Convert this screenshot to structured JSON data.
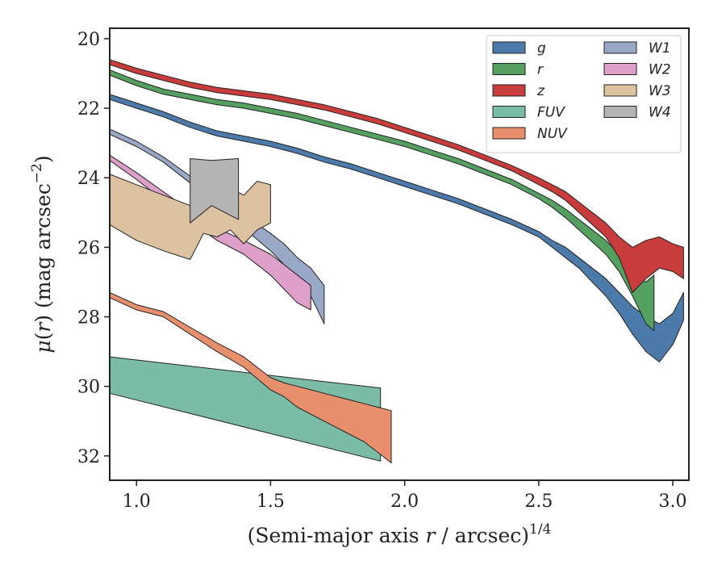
{
  "chart_data": {
    "type": "area",
    "xlabel": "(Semi-major axis r / arcsec)1/4",
    "ylabel": "μ(r) (mag arcsec−2)",
    "xlim": [
      0.9,
      3.06
    ],
    "ylim": [
      32.7,
      19.7
    ],
    "y_inverted": true,
    "xticks": [
      "1.0",
      "1.5",
      "2.0",
      "2.5",
      "3.0"
    ],
    "xtick_values": [
      1.0,
      1.5,
      2.0,
      2.5,
      3.0
    ],
    "yticks": [
      "20",
      "22",
      "24",
      "26",
      "28",
      "30",
      "32"
    ],
    "ytick_values": [
      20,
      22,
      24,
      26,
      28,
      30,
      32
    ],
    "legend_placement": "top-right",
    "legend_columns": 2,
    "grid": false,
    "series": [
      {
        "name": "g",
        "color": "#4c7aaa",
        "x": [
          0.9,
          1.0,
          1.1,
          1.2,
          1.3,
          1.4,
          1.5,
          1.6,
          1.7,
          1.8,
          1.9,
          2.0,
          2.1,
          2.2,
          2.3,
          2.4,
          2.5,
          2.55,
          2.6,
          2.65,
          2.7,
          2.75,
          2.8,
          2.85,
          2.9,
          2.95,
          3.0,
          3.04
        ],
        "lower": [
          21.6,
          21.85,
          22.1,
          22.4,
          22.65,
          22.8,
          22.95,
          23.15,
          23.4,
          23.6,
          23.85,
          24.1,
          24.35,
          24.6,
          24.9,
          25.2,
          25.55,
          25.8,
          26.0,
          26.3,
          26.6,
          26.9,
          27.3,
          27.7,
          28.0,
          28.2,
          27.9,
          27.3
        ],
        "upper": [
          21.75,
          22.0,
          22.25,
          22.55,
          22.8,
          22.95,
          23.1,
          23.3,
          23.55,
          23.75,
          24.0,
          24.25,
          24.5,
          24.75,
          25.05,
          25.35,
          25.7,
          26.0,
          26.3,
          26.6,
          27.0,
          27.4,
          27.9,
          28.5,
          29.0,
          29.3,
          28.8,
          28.1
        ]
      },
      {
        "name": "r",
        "color": "#55a060",
        "x": [
          0.9,
          1.0,
          1.1,
          1.2,
          1.3,
          1.4,
          1.5,
          1.6,
          1.7,
          1.8,
          1.9,
          2.0,
          2.1,
          2.2,
          2.3,
          2.4,
          2.5,
          2.55,
          2.6,
          2.65,
          2.7,
          2.75,
          2.8,
          2.85,
          2.9,
          2.93
        ],
        "lower": [
          20.9,
          21.2,
          21.45,
          21.6,
          21.75,
          21.85,
          22.0,
          22.15,
          22.35,
          22.55,
          22.75,
          22.95,
          23.2,
          23.45,
          23.75,
          24.05,
          24.45,
          24.65,
          24.9,
          25.2,
          25.5,
          25.8,
          26.2,
          26.7,
          27.0,
          26.8
        ],
        "upper": [
          21.05,
          21.35,
          21.6,
          21.75,
          21.9,
          22.0,
          22.15,
          22.3,
          22.5,
          22.7,
          22.9,
          23.1,
          23.35,
          23.6,
          23.9,
          24.2,
          24.6,
          24.85,
          25.15,
          25.5,
          25.85,
          26.2,
          26.7,
          27.4,
          28.2,
          28.4
        ]
      },
      {
        "name": "z",
        "color": "#c83c3c",
        "x": [
          0.9,
          1.0,
          1.1,
          1.2,
          1.3,
          1.4,
          1.5,
          1.6,
          1.7,
          1.8,
          1.9,
          2.0,
          2.1,
          2.2,
          2.3,
          2.4,
          2.5,
          2.55,
          2.6,
          2.65,
          2.7,
          2.75,
          2.8,
          2.85,
          2.9,
          2.95,
          3.0,
          3.04
        ],
        "lower": [
          20.6,
          20.85,
          21.05,
          21.25,
          21.4,
          21.5,
          21.6,
          21.75,
          21.9,
          22.1,
          22.3,
          22.55,
          22.8,
          23.05,
          23.35,
          23.65,
          24.0,
          24.2,
          24.4,
          24.7,
          25.0,
          25.3,
          25.7,
          26.0,
          25.8,
          25.7,
          25.9,
          26.0
        ],
        "upper": [
          20.75,
          21.0,
          21.2,
          21.4,
          21.55,
          21.65,
          21.75,
          21.9,
          22.05,
          22.25,
          22.45,
          22.7,
          22.95,
          23.2,
          23.5,
          23.8,
          24.2,
          24.4,
          24.65,
          25.0,
          25.35,
          25.7,
          26.3,
          27.3,
          26.9,
          26.6,
          26.7,
          26.9
        ]
      },
      {
        "name": "FUV",
        "color": "#7bbca6",
        "x": [
          0.9,
          1.91
        ],
        "lower": [
          29.15,
          30.05
        ],
        "upper": [
          30.2,
          32.15
        ]
      },
      {
        "name": "NUV",
        "color": "#e8906e",
        "x": [
          0.9,
          1.0,
          1.1,
          1.2,
          1.3,
          1.4,
          1.5,
          1.55,
          1.6,
          1.65,
          1.7,
          1.75,
          1.8,
          1.85,
          1.9,
          1.95
        ],
        "lower": [
          27.3,
          27.65,
          27.85,
          28.3,
          28.75,
          29.15,
          29.75,
          29.9,
          30.0,
          30.1,
          30.2,
          30.3,
          30.4,
          30.5,
          30.6,
          30.7
        ],
        "upper": [
          27.45,
          27.8,
          28.0,
          28.5,
          29.0,
          29.45,
          30.1,
          30.3,
          30.6,
          30.8,
          31.0,
          31.2,
          31.4,
          31.6,
          31.9,
          32.2
        ]
      },
      {
        "name": "W1",
        "color": "#9aa8c8",
        "x": [
          0.9,
          1.0,
          1.1,
          1.2,
          1.3,
          1.4,
          1.5,
          1.55,
          1.6,
          1.65,
          1.7
        ],
        "lower": [
          22.6,
          22.95,
          23.4,
          23.95,
          24.5,
          25.05,
          25.6,
          25.9,
          26.3,
          26.6,
          27.1
        ],
        "upper": [
          22.75,
          23.1,
          23.55,
          24.15,
          24.8,
          25.45,
          26.1,
          26.5,
          27.0,
          27.4,
          28.2
        ]
      },
      {
        "name": "W2",
        "color": "#dea0c8",
        "x": [
          0.9,
          1.0,
          1.1,
          1.2,
          1.3,
          1.4,
          1.5,
          1.55,
          1.6,
          1.65
        ],
        "lower": [
          23.35,
          23.85,
          24.4,
          24.95,
          25.45,
          25.8,
          26.2,
          26.5,
          26.8,
          27.1
        ],
        "upper": [
          23.5,
          24.05,
          24.65,
          25.25,
          25.8,
          26.2,
          26.8,
          27.2,
          27.6,
          27.8
        ]
      },
      {
        "name": "W3",
        "color": "#dcc2a0",
        "x": [
          0.9,
          1.0,
          1.1,
          1.2,
          1.25,
          1.3,
          1.35,
          1.4,
          1.45,
          1.5
        ],
        "lower": [
          23.9,
          24.2,
          24.5,
          24.8,
          24.7,
          24.45,
          24.3,
          24.5,
          24.1,
          24.2
        ],
        "upper": [
          25.35,
          25.8,
          26.1,
          26.35,
          25.6,
          25.7,
          25.5,
          25.9,
          25.5,
          25.3
        ]
      },
      {
        "name": "W4",
        "color": "#b4b4b4",
        "x": [
          1.2,
          1.28,
          1.38
        ],
        "lower": [
          23.45,
          23.5,
          23.45
        ],
        "upper": [
          25.3,
          24.8,
          25.2
        ]
      }
    ]
  }
}
